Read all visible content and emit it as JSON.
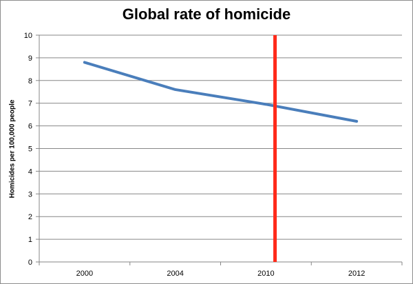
{
  "chart_data": {
    "type": "line",
    "title": "Global rate of homicide",
    "xlabel": "",
    "ylabel": "Homicides  per 100,000 people",
    "categories": [
      "2000",
      "2004",
      "2010",
      "2012"
    ],
    "series": [
      {
        "values": [
          8.8,
          7.6,
          6.95,
          6.2
        ],
        "color": "#4a7ebb"
      }
    ],
    "ylim": [
      0,
      10
    ],
    "yticks": [
      0,
      1,
      2,
      3,
      4,
      5,
      6,
      7,
      8,
      9,
      10
    ],
    "grid": "horizontal",
    "legend": "none",
    "annotations": [
      {
        "type": "vertical-line",
        "at": 2.1,
        "color": "#ff2a1a"
      }
    ]
  }
}
